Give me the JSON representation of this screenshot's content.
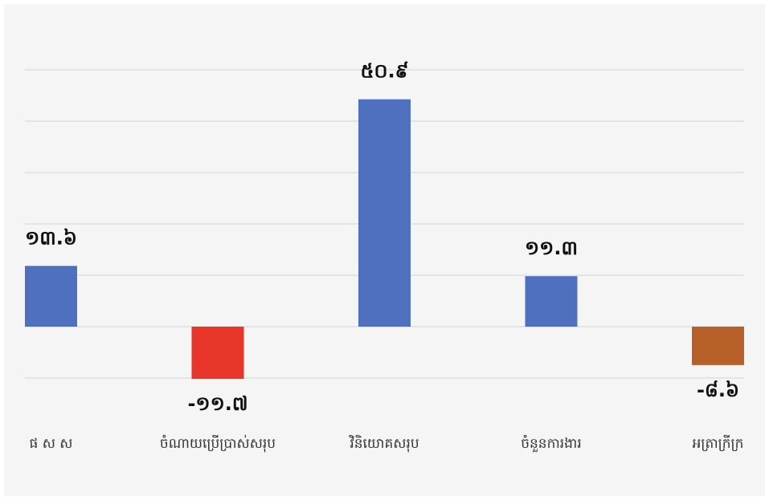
{
  "chart_data": {
    "type": "bar",
    "categories": [
      "ផ ស ស",
      "ចំណាយប្រើប្រាស់សរុប",
      "វិនិយោគសរុប",
      "ចំនួនការងារ",
      "អត្រាក្រីក្រ"
    ],
    "values": [
      13.6,
      -11.7,
      50.9,
      11.3,
      -8.6
    ],
    "value_labels": [
      "១៣.៦",
      "-១១.៧",
      "៥០.៩",
      "១១.៣",
      "-៨.៦"
    ],
    "colors": [
      "#4f70bf",
      "#e8352a",
      "#4f70bf",
      "#4f70bf",
      "#b8602a"
    ],
    "ylim": [
      -11.5,
      57.5
    ],
    "yticks": [
      -11.5,
      0,
      11.5,
      23,
      34.5,
      46,
      57.5
    ],
    "grid": true
  }
}
